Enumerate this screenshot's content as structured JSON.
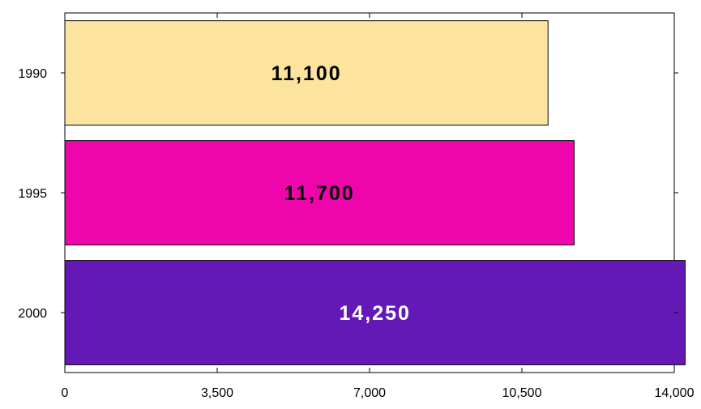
{
  "chart_data": {
    "type": "bar",
    "orientation": "horizontal",
    "categories": [
      "1990",
      "1995",
      "2000"
    ],
    "values": [
      11100,
      11700,
      14250
    ],
    "data_labels": [
      "11,100",
      "11,700",
      "14,250"
    ],
    "bar_colors": [
      "#FCE49E",
      "#EE06AC",
      "#6419B7"
    ],
    "label_colors": [
      "#000000",
      "#000000",
      "#FFFFFF"
    ],
    "xlim": [
      0,
      14000
    ],
    "xticks": [
      0,
      3500,
      7000,
      10500,
      14000
    ],
    "xtick_labels": [
      "0",
      "3,500",
      "7,000",
      "10,500",
      "14,000"
    ],
    "title": "",
    "xlabel": "",
    "ylabel": "",
    "grid": false,
    "legend": false
  }
}
